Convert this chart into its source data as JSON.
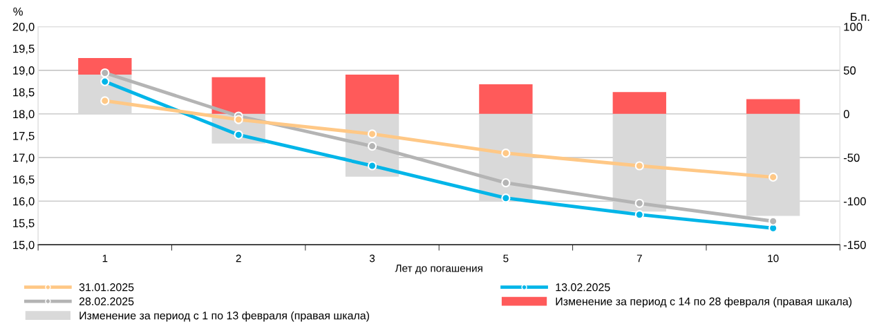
{
  "chart_data": {
    "type": "line",
    "categories": [
      "1",
      "2",
      "3",
      "5",
      "7",
      "10"
    ],
    "xlabel": "Лет до погашения",
    "ylabel": "%",
    "y2label": "Б.п.",
    "ylim": [
      15,
      20
    ],
    "yticks": [
      {
        "value": 15,
        "label": "15,0"
      },
      {
        "value": 15.5,
        "label": "15,5"
      },
      {
        "value": 16,
        "label": "16,0"
      },
      {
        "value": 16.5,
        "label": "16,5"
      },
      {
        "value": 17,
        "label": "17,0"
      },
      {
        "value": 17.5,
        "label": "17,5"
      },
      {
        "value": 18,
        "label": "18,0"
      },
      {
        "value": 18.5,
        "label": "18,5"
      },
      {
        "value": 19,
        "label": "19,0"
      },
      {
        "value": 19.5,
        "label": "19,5"
      },
      {
        "value": 20,
        "label": "20,0"
      }
    ],
    "y2lim": [
      -150,
      100
    ],
    "y2ticks": [
      -150,
      -100,
      -50,
      0,
      50,
      100
    ],
    "stacked": true,
    "grid": "y",
    "legend": "bottom",
    "marker": "circle",
    "line_style": "solid",
    "series": [
      {
        "name": "31.01.2025",
        "color": "#ffc886",
        "values": [
          18.3,
          17.87,
          17.54,
          17.1,
          16.81,
          16.55
        ]
      },
      {
        "name": "28.02.2025",
        "color": "#b4b4b4",
        "values": [
          18.94,
          17.95,
          17.26,
          16.42,
          15.95,
          15.54
        ]
      },
      {
        "name": "Изменение за период с 1 по 13 февраля (правая шкала)",
        "type": "bar",
        "axis": "y2",
        "color": "#d9d9d9",
        "values": [
          45,
          -34,
          -72,
          -100,
          -112,
          -117
        ]
      },
      {
        "name": "13.02.2025",
        "color": "#00b5e8",
        "values": [
          18.74,
          17.52,
          16.81,
          16.07,
          15.69,
          15.38
        ]
      },
      {
        "name": "Изменение за период с 14 по 28 февраля (правая шкала)",
        "type": "bar",
        "axis": "y2",
        "color": "#ff5a5a",
        "values": [
          19,
          42,
          45,
          34,
          25,
          17
        ]
      }
    ]
  }
}
